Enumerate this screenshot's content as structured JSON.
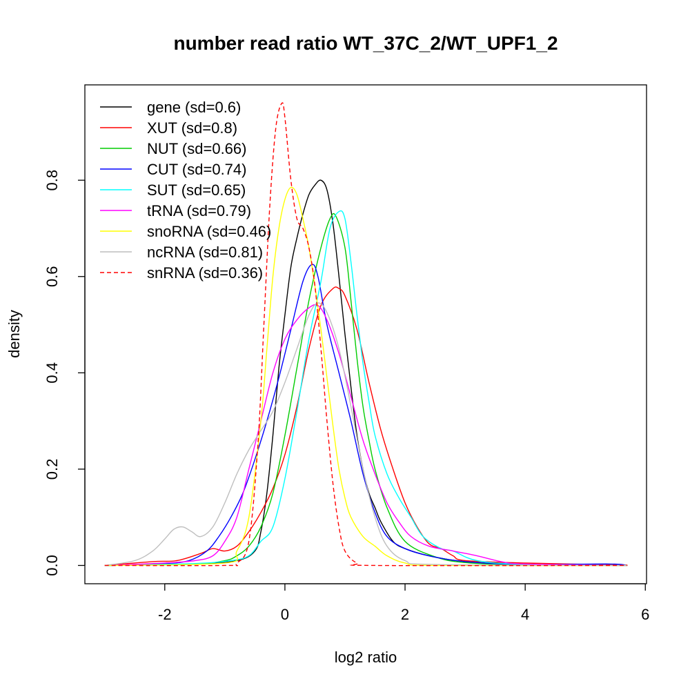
{
  "chart_data": {
    "type": "line",
    "title": "number read ratio WT_37C_2/WT_UPF1_2",
    "xlabel": "log2 ratio",
    "ylabel": "density",
    "xlim": [
      -3.33,
      6.02
    ],
    "ylim": [
      -0.038,
      0.998
    ],
    "xticks": [
      -2,
      0,
      2,
      4,
      6
    ],
    "xtick_labels": [
      "-2",
      "0",
      "2",
      "4",
      "6"
    ],
    "yticks": [
      0.0,
      0.2,
      0.4,
      0.6,
      0.8
    ],
    "ytick_labels": [
      "0.0",
      "0.2",
      "0.4",
      "0.6",
      "0.8"
    ],
    "legend_position": "top-left",
    "series": [
      {
        "name": "gene",
        "legend": "gene (sd=0.6)",
        "color": "#000000",
        "dash": false,
        "points": [
          [
            -3.0,
            0
          ],
          [
            -1.5,
            0.003
          ],
          [
            -0.8,
            0.01
          ],
          [
            -0.5,
            0.03
          ],
          [
            -0.4,
            0.07
          ],
          [
            -0.3,
            0.15
          ],
          [
            -0.2,
            0.27
          ],
          [
            -0.1,
            0.41
          ],
          [
            0.0,
            0.52
          ],
          [
            0.1,
            0.62
          ],
          [
            0.2,
            0.68
          ],
          [
            0.3,
            0.73
          ],
          [
            0.4,
            0.77
          ],
          [
            0.5,
            0.79
          ],
          [
            0.6,
            0.8
          ],
          [
            0.7,
            0.78
          ],
          [
            0.8,
            0.71
          ],
          [
            0.9,
            0.6
          ],
          [
            1.0,
            0.48
          ],
          [
            1.1,
            0.37
          ],
          [
            1.2,
            0.27
          ],
          [
            1.3,
            0.2
          ],
          [
            1.4,
            0.15
          ],
          [
            1.5,
            0.12
          ],
          [
            1.6,
            0.09
          ],
          [
            1.8,
            0.05
          ],
          [
            2.0,
            0.035
          ],
          [
            2.4,
            0.02
          ],
          [
            3.0,
            0.008
          ],
          [
            4.0,
            0.002
          ],
          [
            5.7,
            0
          ]
        ]
      },
      {
        "name": "XUT",
        "legend": "XUT (sd=0.8)",
        "color": "#ff0000",
        "dash": false,
        "points": [
          [
            -3.0,
            0
          ],
          [
            -2.2,
            0.008
          ],
          [
            -1.8,
            0.01
          ],
          [
            -1.4,
            0.025
          ],
          [
            -1.2,
            0.035
          ],
          [
            -1.0,
            0.03
          ],
          [
            -0.8,
            0.04
          ],
          [
            -0.6,
            0.07
          ],
          [
            -0.4,
            0.11
          ],
          [
            -0.2,
            0.16
          ],
          [
            0.0,
            0.23
          ],
          [
            0.2,
            0.33
          ],
          [
            0.4,
            0.45
          ],
          [
            0.6,
            0.54
          ],
          [
            0.8,
            0.575
          ],
          [
            0.9,
            0.575
          ],
          [
            1.0,
            0.56
          ],
          [
            1.2,
            0.49
          ],
          [
            1.4,
            0.38
          ],
          [
            1.6,
            0.28
          ],
          [
            1.8,
            0.2
          ],
          [
            2.0,
            0.13
          ],
          [
            2.2,
            0.08
          ],
          [
            2.4,
            0.045
          ],
          [
            2.6,
            0.035
          ],
          [
            2.8,
            0.02
          ],
          [
            3.0,
            0.01
          ],
          [
            4.0,
            0.005
          ],
          [
            5.7,
            0.001
          ]
        ]
      },
      {
        "name": "NUT",
        "legend": "NUT (sd=0.66)",
        "color": "#00cc00",
        "dash": false,
        "points": [
          [
            -3.0,
            0
          ],
          [
            -1.5,
            0.003
          ],
          [
            -1.0,
            0.01
          ],
          [
            -0.8,
            0.02
          ],
          [
            -0.6,
            0.04
          ],
          [
            -0.4,
            0.08
          ],
          [
            -0.2,
            0.15
          ],
          [
            0.0,
            0.27
          ],
          [
            0.2,
            0.41
          ],
          [
            0.4,
            0.55
          ],
          [
            0.6,
            0.66
          ],
          [
            0.75,
            0.72
          ],
          [
            0.85,
            0.725
          ],
          [
            1.0,
            0.66
          ],
          [
            1.1,
            0.55
          ],
          [
            1.2,
            0.43
          ],
          [
            1.3,
            0.33
          ],
          [
            1.4,
            0.26
          ],
          [
            1.5,
            0.2
          ],
          [
            1.7,
            0.12
          ],
          [
            2.0,
            0.05
          ],
          [
            2.5,
            0.018
          ],
          [
            3.0,
            0.006
          ],
          [
            4.0,
            0.001
          ],
          [
            5.7,
            0
          ]
        ]
      },
      {
        "name": "CUT",
        "legend": "CUT (sd=0.74)",
        "color": "#0000ff",
        "dash": false,
        "points": [
          [
            -3.0,
            0
          ],
          [
            -2.0,
            0.004
          ],
          [
            -1.6,
            0.01
          ],
          [
            -1.3,
            0.03
          ],
          [
            -1.1,
            0.06
          ],
          [
            -0.9,
            0.1
          ],
          [
            -0.7,
            0.15
          ],
          [
            -0.5,
            0.22
          ],
          [
            -0.3,
            0.3
          ],
          [
            -0.1,
            0.39
          ],
          [
            0.1,
            0.49
          ],
          [
            0.3,
            0.59
          ],
          [
            0.45,
            0.625
          ],
          [
            0.55,
            0.6
          ],
          [
            0.7,
            0.5
          ],
          [
            0.9,
            0.4
          ],
          [
            1.1,
            0.3
          ],
          [
            1.3,
            0.19
          ],
          [
            1.5,
            0.11
          ],
          [
            1.7,
            0.06
          ],
          [
            2.0,
            0.035
          ],
          [
            2.4,
            0.02
          ],
          [
            3.0,
            0.008
          ],
          [
            4.0,
            0.002
          ],
          [
            5.4,
            0.003
          ],
          [
            5.7,
            0
          ]
        ]
      },
      {
        "name": "SUT",
        "legend": "SUT (sd=0.65)",
        "color": "#00ffff",
        "dash": false,
        "points": [
          [
            -3.0,
            0
          ],
          [
            -1.5,
            0.004
          ],
          [
            -0.9,
            0.01
          ],
          [
            -0.6,
            0.02
          ],
          [
            -0.4,
            0.05
          ],
          [
            -0.2,
            0.08
          ],
          [
            0.0,
            0.18
          ],
          [
            0.2,
            0.32
          ],
          [
            0.4,
            0.47
          ],
          [
            0.6,
            0.59
          ],
          [
            0.75,
            0.7
          ],
          [
            0.9,
            0.735
          ],
          [
            1.0,
            0.72
          ],
          [
            1.1,
            0.63
          ],
          [
            1.2,
            0.52
          ],
          [
            1.3,
            0.42
          ],
          [
            1.4,
            0.34
          ],
          [
            1.5,
            0.27
          ],
          [
            1.7,
            0.19
          ],
          [
            1.9,
            0.14
          ],
          [
            2.1,
            0.1
          ],
          [
            2.3,
            0.06
          ],
          [
            2.6,
            0.035
          ],
          [
            2.8,
            0.03
          ],
          [
            3.2,
            0.01
          ],
          [
            4.0,
            0.002
          ],
          [
            5.7,
            0
          ]
        ]
      },
      {
        "name": "tRNA",
        "legend": "tRNA (sd=0.79)",
        "color": "#ff00ff",
        "dash": false,
        "points": [
          [
            -3.0,
            0
          ],
          [
            -2.0,
            0.005
          ],
          [
            -1.5,
            0.01
          ],
          [
            -1.2,
            0.02
          ],
          [
            -1.0,
            0.05
          ],
          [
            -0.8,
            0.1
          ],
          [
            -0.6,
            0.2
          ],
          [
            -0.4,
            0.3
          ],
          [
            -0.2,
            0.4
          ],
          [
            0.0,
            0.47
          ],
          [
            0.2,
            0.51
          ],
          [
            0.4,
            0.535
          ],
          [
            0.55,
            0.54
          ],
          [
            0.7,
            0.51
          ],
          [
            0.9,
            0.44
          ],
          [
            1.1,
            0.35
          ],
          [
            1.3,
            0.26
          ],
          [
            1.5,
            0.19
          ],
          [
            1.7,
            0.13
          ],
          [
            1.9,
            0.09
          ],
          [
            2.1,
            0.06
          ],
          [
            2.4,
            0.04
          ],
          [
            2.8,
            0.03
          ],
          [
            3.2,
            0.02
          ],
          [
            3.6,
            0.008
          ],
          [
            4.0,
            0.003
          ],
          [
            5.7,
            0
          ]
        ]
      },
      {
        "name": "snoRNA",
        "legend": "snoRNA (sd=0.46)",
        "color": "#ffff00",
        "dash": false,
        "points": [
          [
            -3.0,
            0
          ],
          [
            -1.0,
            0.005
          ],
          [
            -0.8,
            0.03
          ],
          [
            -0.6,
            0.1
          ],
          [
            -0.4,
            0.3
          ],
          [
            -0.3,
            0.45
          ],
          [
            -0.2,
            0.6
          ],
          [
            -0.1,
            0.7
          ],
          [
            0.0,
            0.76
          ],
          [
            0.1,
            0.785
          ],
          [
            0.2,
            0.77
          ],
          [
            0.3,
            0.72
          ],
          [
            0.4,
            0.66
          ],
          [
            0.5,
            0.58
          ],
          [
            0.6,
            0.49
          ],
          [
            0.7,
            0.39
          ],
          [
            0.8,
            0.29
          ],
          [
            0.9,
            0.2
          ],
          [
            1.0,
            0.14
          ],
          [
            1.1,
            0.1
          ],
          [
            1.3,
            0.06
          ],
          [
            1.5,
            0.04
          ],
          [
            1.7,
            0.02
          ],
          [
            2.0,
            0.005
          ],
          [
            2.5,
            0
          ],
          [
            5.7,
            0
          ]
        ]
      },
      {
        "name": "ncRNA",
        "legend": "ncRNA (sd=0.81)",
        "color": "#bebebe",
        "dash": false,
        "points": [
          [
            -3.0,
            0
          ],
          [
            -2.5,
            0.01
          ],
          [
            -2.2,
            0.03
          ],
          [
            -2.0,
            0.055
          ],
          [
            -1.85,
            0.075
          ],
          [
            -1.7,
            0.08
          ],
          [
            -1.55,
            0.07
          ],
          [
            -1.4,
            0.06
          ],
          [
            -1.2,
            0.08
          ],
          [
            -1.0,
            0.13
          ],
          [
            -0.8,
            0.19
          ],
          [
            -0.6,
            0.24
          ],
          [
            -0.4,
            0.28
          ],
          [
            -0.2,
            0.32
          ],
          [
            0.0,
            0.38
          ],
          [
            0.2,
            0.45
          ],
          [
            0.4,
            0.52
          ],
          [
            0.55,
            0.545
          ],
          [
            0.7,
            0.525
          ],
          [
            0.9,
            0.45
          ],
          [
            1.1,
            0.33
          ],
          [
            1.3,
            0.2
          ],
          [
            1.5,
            0.1
          ],
          [
            1.7,
            0.04
          ],
          [
            2.0,
            0.01
          ],
          [
            2.5,
            0.002
          ],
          [
            5.7,
            0
          ]
        ]
      },
      {
        "name": "snRNA",
        "legend": "snRNA (sd=0.36)",
        "color": "#ff0000",
        "dash": true,
        "points": [
          [
            -3.0,
            0
          ],
          [
            -1.0,
            0
          ],
          [
            -0.8,
            0.005
          ],
          [
            -0.6,
            0.05
          ],
          [
            -0.45,
            0.25
          ],
          [
            -0.35,
            0.5
          ],
          [
            -0.25,
            0.75
          ],
          [
            -0.15,
            0.91
          ],
          [
            -0.05,
            0.96
          ],
          [
            0.0,
            0.93
          ],
          [
            0.1,
            0.8
          ],
          [
            0.2,
            0.72
          ],
          [
            0.3,
            0.7
          ],
          [
            0.4,
            0.66
          ],
          [
            0.5,
            0.58
          ],
          [
            0.6,
            0.45
          ],
          [
            0.7,
            0.3
          ],
          [
            0.8,
            0.17
          ],
          [
            0.9,
            0.08
          ],
          [
            1.0,
            0.03
          ],
          [
            1.2,
            0.005
          ],
          [
            1.5,
            0
          ],
          [
            5.7,
            0
          ]
        ]
      }
    ]
  }
}
